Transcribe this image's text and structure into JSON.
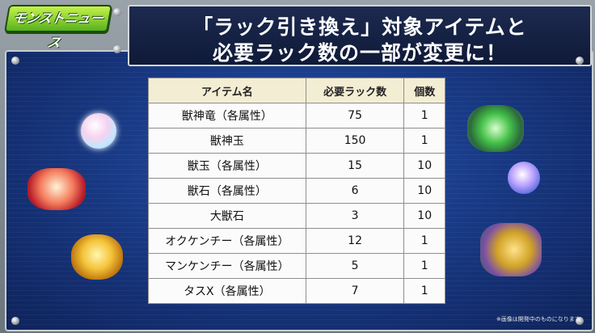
{
  "logo": {
    "text": "モンストニュース"
  },
  "title": {
    "line1": "「ラック引き換え」対象アイテムと",
    "line2": "必要ラック数の一部が変更に！"
  },
  "table": {
    "headers": [
      "アイテム名",
      "必要ラック数",
      "個数"
    ],
    "rows": [
      [
        "獣神竜（各属性）",
        "75",
        "1"
      ],
      [
        "獣神玉",
        "150",
        "1"
      ],
      [
        "獣玉（各属性）",
        "15",
        "10"
      ],
      [
        "獣石（各属性）",
        "6",
        "10"
      ],
      [
        "大獣石",
        "3",
        "10"
      ],
      [
        "オクケンチー（各属性）",
        "12",
        "1"
      ],
      [
        "マンケンチー（各属性）",
        "5",
        "1"
      ],
      [
        "タスX（各属性）",
        "7",
        "1"
      ]
    ]
  },
  "note": "※画像は開発中のものになります。",
  "icons": [
    "rainbow-orb-icon",
    "red-dragon-icon",
    "gold-gem-icon",
    "green-gem-icon",
    "purple-orb-icon",
    "tasx-character-icon"
  ]
}
